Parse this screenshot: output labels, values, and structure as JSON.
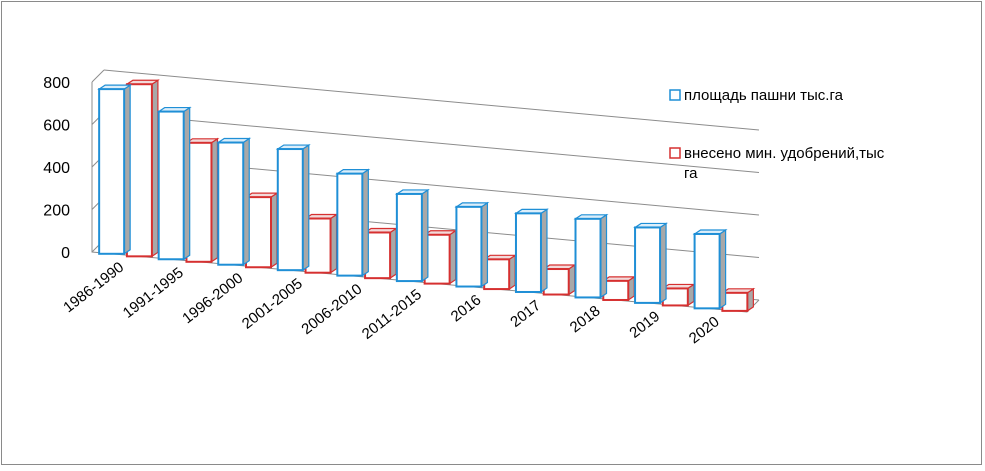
{
  "chart_data": {
    "type": "bar",
    "title": "",
    "xlabel": "",
    "ylabel": "",
    "ylim": [
      0,
      800
    ],
    "yticks": [
      0,
      200,
      400,
      600,
      800
    ],
    "categories": [
      "1986-1990",
      "1991-1995",
      "1996-2000",
      "2001-2005",
      "2006-2010",
      "2011-2015",
      "2016",
      "2017",
      "2018",
      "2019",
      "2020"
    ],
    "series": [
      {
        "name": "площадь пашни тыс.га",
        "values": [
          775,
          695,
          575,
          570,
          480,
          410,
          375,
          370,
          370,
          355,
          350
        ],
        "color": "#1f8fd6"
      },
      {
        "name": "внесено  мин. удобрений,тыс га",
        "values": [
          810,
          560,
          330,
          255,
          215,
          230,
          140,
          120,
          90,
          80,
          85
        ],
        "color": "#d63030"
      }
    ],
    "grid": true,
    "legend_position": "right",
    "projection": "3d-oblique"
  }
}
